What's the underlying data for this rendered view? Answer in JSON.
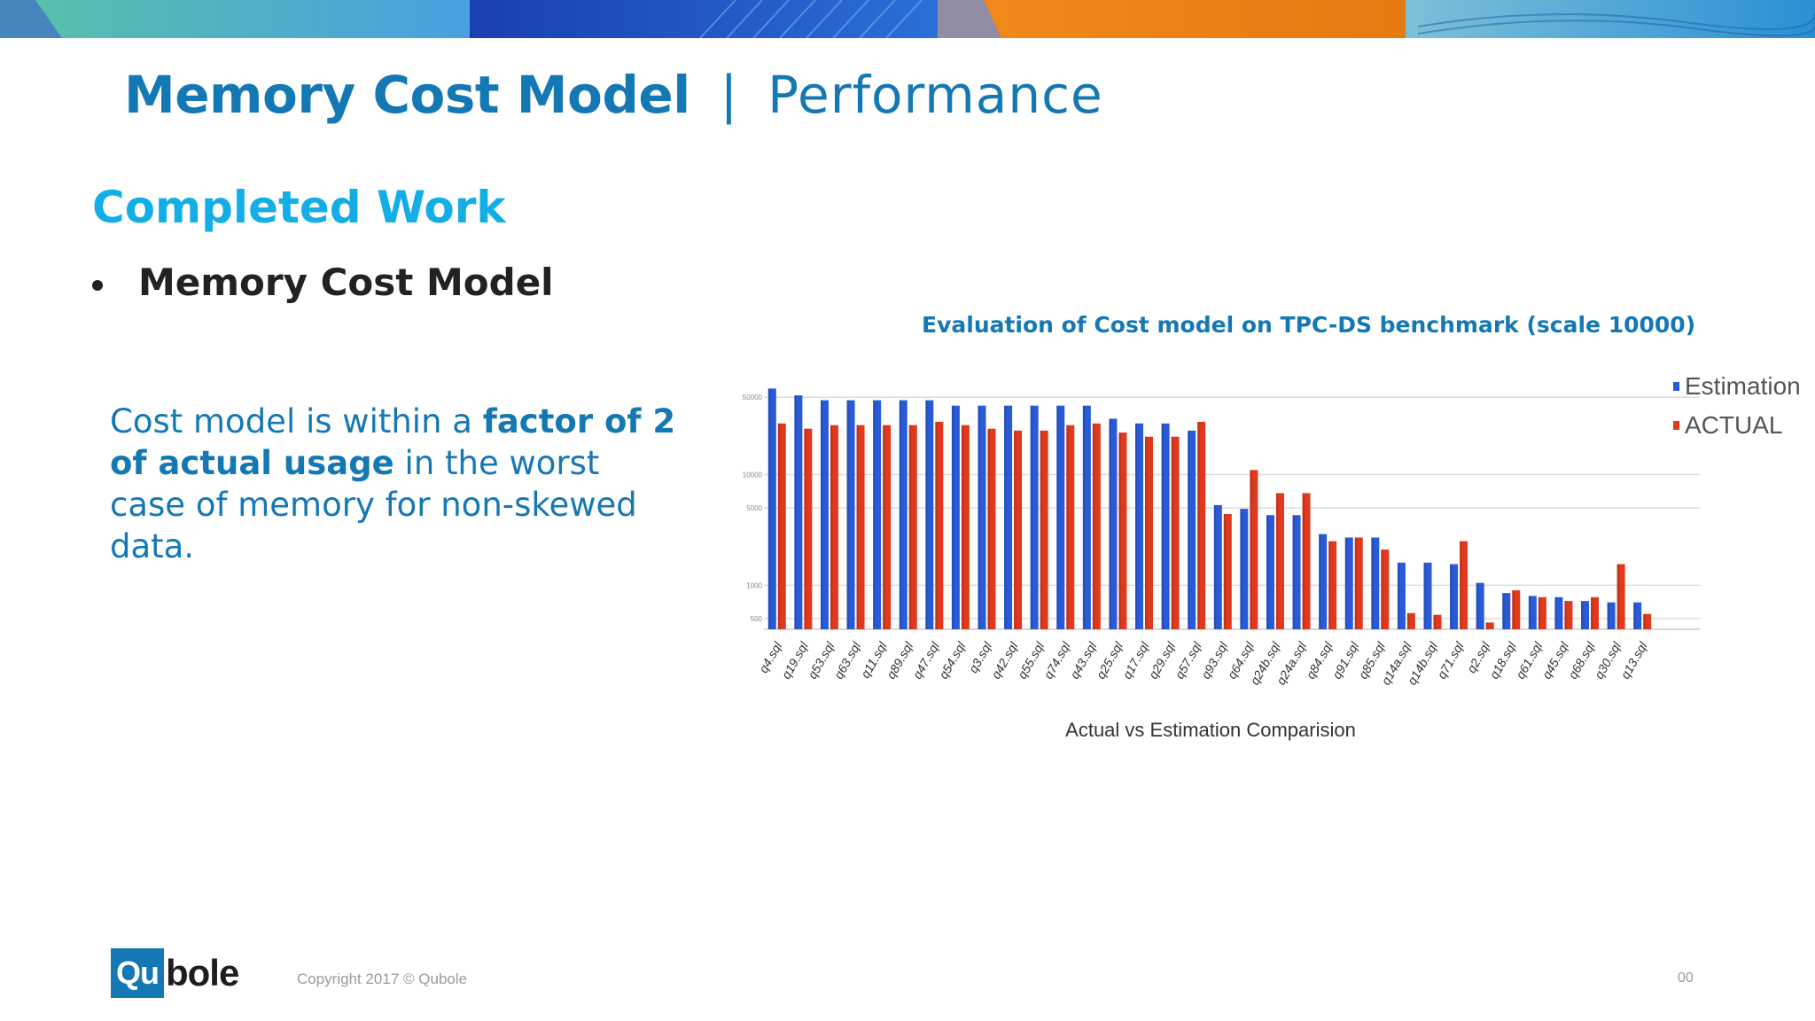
{
  "slide": {
    "title_main": "Memory Cost Model",
    "title_separator": "|",
    "title_sub": "Performance",
    "section_heading": "Completed Work",
    "bullet": "Memory Cost Model",
    "callout": {
      "part1": "Cost model is within a ",
      "bold1": "factor of 2",
      "part2": " ",
      "bold2": "of actual usage",
      "part3": " in the worst case of memory for non-skewed data."
    },
    "footer": {
      "logo_box": "Qu",
      "logo_rest": "bole",
      "copyright": "Copyright 2017 © Qubole",
      "page_number": "00"
    }
  },
  "colors": {
    "brand_blue": "#1478b4",
    "heading_cyan": "#13aee6",
    "estimation": "#2a5bd7",
    "actual": "#e03a1e"
  },
  "chart_data": {
    "type": "bar",
    "title": "Evaluation of Cost model on TPC-DS benchmark (scale 10000)",
    "xlabel": "Actual vs Estimation Comparision",
    "ylabel": "",
    "yscale": "log",
    "yticks": [
      500,
      1000,
      5000,
      10000,
      50000
    ],
    "ylim": [
      400,
      70000
    ],
    "legend_position": "right",
    "categories": [
      "q4.sql",
      "q19.sql",
      "q53.sql",
      "q63.sql",
      "q11.sql",
      "q89.sql",
      "q47.sql",
      "q54.sql",
      "q3.sql",
      "q42.sql",
      "q55.sql",
      "q74.sql",
      "q43.sql",
      "q25.sql",
      "q17.sql",
      "q29.sql",
      "q57.sql",
      "q93.sql",
      "q64.sql",
      "q24b.sql",
      "q24a.sql",
      "q84.sql",
      "q91.sql",
      "q85.sql",
      "q14a.sql",
      "q14b.sql",
      "q71.sql",
      "q2.sql",
      "q18.sql",
      "q61.sql",
      "q45.sql",
      "q68.sql",
      "q30.sql",
      "q13.sql"
    ],
    "series": [
      {
        "name": "Estimation",
        "color": "#2a5bd7",
        "values": [
          60000,
          52000,
          47000,
          47000,
          47000,
          47000,
          47000,
          42000,
          42000,
          42000,
          42000,
          42000,
          42000,
          32000,
          29000,
          29000,
          25000,
          5300,
          4900,
          4300,
          4300,
          2900,
          2700,
          2700,
          1600,
          1600,
          1550,
          1050,
          850,
          800,
          780,
          720,
          700,
          700
        ]
      },
      {
        "name": "ACTUAL",
        "color": "#e03a1e",
        "values": [
          29000,
          26000,
          28000,
          28000,
          28000,
          28000,
          30000,
          28000,
          26000,
          25000,
          25000,
          28000,
          29000,
          24000,
          22000,
          22000,
          30000,
          4400,
          11000,
          6800,
          6800,
          2500,
          2700,
          2100,
          560,
          540,
          2500,
          460,
          900,
          780,
          720,
          780,
          1550,
          550
        ]
      }
    ]
  }
}
